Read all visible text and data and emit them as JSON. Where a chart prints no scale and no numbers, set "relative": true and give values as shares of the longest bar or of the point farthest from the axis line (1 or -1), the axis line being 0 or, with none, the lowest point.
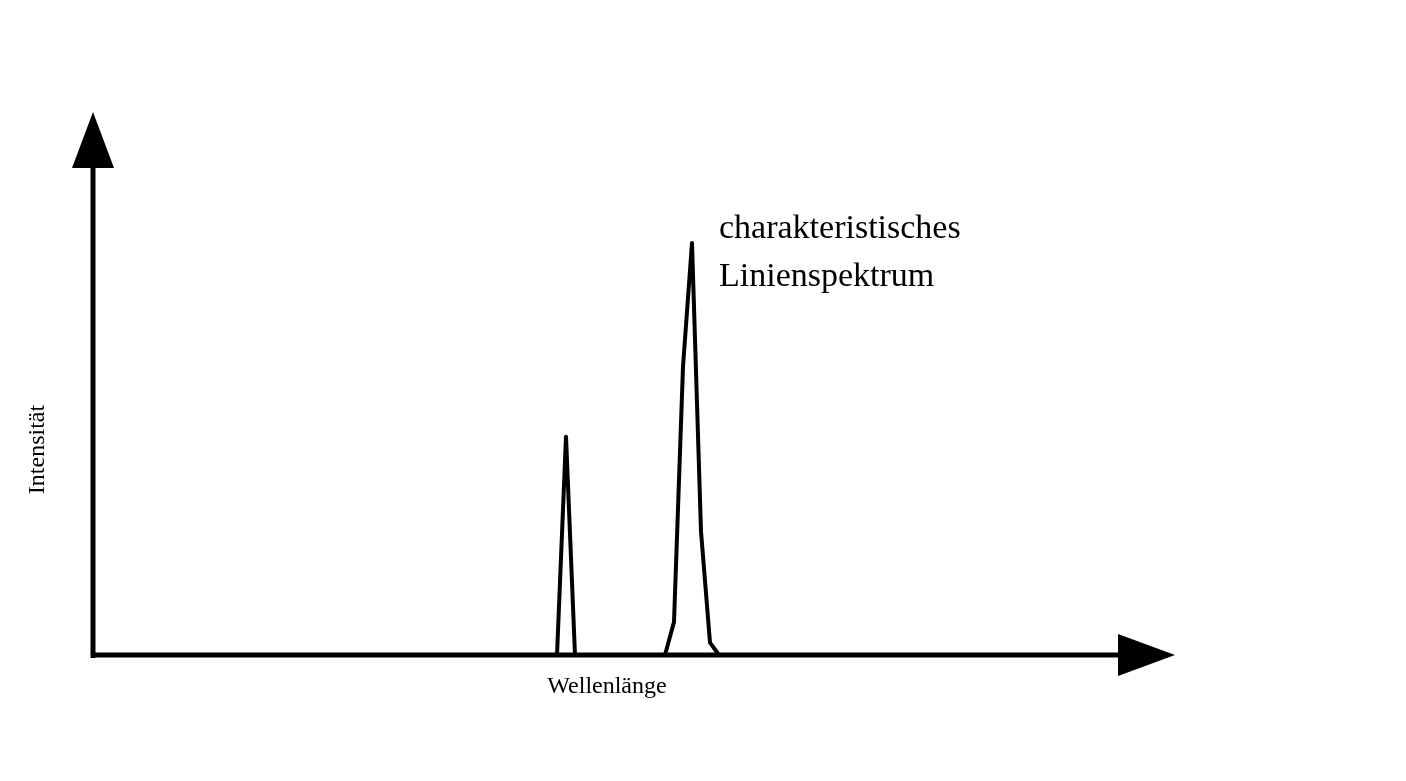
{
  "chart_data": {
    "type": "line",
    "relative": true,
    "xlabel": "Wellenlänge",
    "ylabel": "Intensität",
    "annotations": [
      "charakteristisches\nLinienspektrum"
    ],
    "categories": [
      null,
      null,
      null,
      null,
      null,
      null,
      null,
      null,
      null,
      null,
      null,
      null,
      null,
      null,
      null,
      null,
      null,
      null,
      null,
      null,
      null,
      null,
      null,
      null,
      null,
      null,
      null,
      null,
      null,
      null,
      null,
      null,
      null,
      null,
      null,
      null,
      null,
      null,
      null,
      null,
      null,
      null,
      null,
      null,
      null,
      null,
      null,
      null,
      null,
      null,
      null,
      null,
      null,
      null,
      null,
      null,
      null,
      null,
      null,
      null,
      null,
      null,
      null,
      null,
      null,
      null,
      null,
      null,
      null,
      null,
      null,
      null,
      null,
      null,
      null,
      null,
      null,
      null,
      null,
      null,
      null,
      null,
      null,
      null,
      null,
      null,
      null,
      null,
      null,
      null,
      null,
      null,
      null,
      null,
      null,
      null,
      null,
      null,
      null,
      null,
      null,
      null,
      null,
      null,
      null,
      null,
      null,
      null,
      null,
      null,
      null,
      null,
      null,
      null
    ],
    "series": [
      {
        "color": "#000000",
        "values": [
          0,
          0,
          0,
          0,
          0,
          0,
          0,
          0,
          0,
          0,
          0,
          0,
          0,
          0,
          0,
          0,
          0,
          0,
          0,
          0,
          0,
          0,
          0,
          0,
          0,
          0,
          0,
          0,
          0,
          0,
          0,
          0,
          0,
          0,
          0,
          0,
          0,
          0,
          0,
          0,
          0,
          0,
          0,
          0,
          0,
          0,
          0,
          0,
          0,
          0,
          0,
          0,
          0.53,
          0,
          0,
          0,
          0,
          0,
          0,
          0,
          0,
          0,
          0,
          0,
          0.08,
          0.7,
          1,
          0.3,
          0.03,
          0,
          0,
          0,
          0,
          0,
          0,
          0,
          0,
          0,
          0,
          0,
          0,
          0,
          0,
          0,
          0,
          0,
          0,
          0,
          0,
          0,
          0,
          0,
          0,
          0,
          0,
          0,
          0,
          0,
          0,
          0,
          0,
          0,
          0,
          0,
          0,
          0,
          0,
          0,
          0,
          0,
          0,
          0,
          0,
          0
        ]
      }
    ]
  }
}
